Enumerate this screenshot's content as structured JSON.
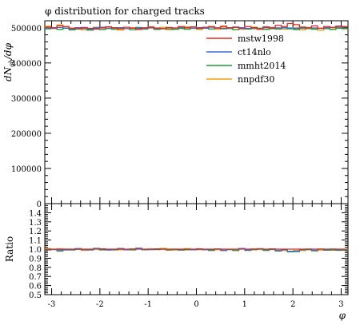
{
  "chart_data": {
    "type": "line",
    "title": "φ distribution for charged tracks",
    "xlabel": "φ",
    "ylabel": "dN_ch/dφ",
    "ratio_ylabel": "Ratio",
    "xlim": [
      -3.1416,
      3.1416
    ],
    "ylim": [
      0,
      520000
    ],
    "ratio_ylim": [
      0.5,
      1.5
    ],
    "x_ticks": [
      -3,
      -2,
      -1,
      0,
      1,
      2,
      3
    ],
    "y_ticks": [
      0,
      100000,
      200000,
      300000,
      400000,
      500000
    ],
    "ratio_ticks": [
      0.5,
      0.6,
      0.7,
      0.8,
      0.9,
      1.0,
      1.1,
      1.2,
      1.3,
      1.4
    ],
    "legend_position": "top-right",
    "n_bins": 50,
    "series": [
      {
        "name": "mstw1998",
        "color": "#e8261f",
        "values": [
          502000,
          500500,
          506000,
          503500,
          499000,
          497500,
          501000,
          498500,
          496500,
          499500,
          503000,
          500500,
          497000,
          501500,
          499000,
          495500,
          500000,
          502000,
          498000,
          497500,
          501000,
          499500,
          503500,
          500000,
          502500,
          498500,
          501500,
          503500,
          499000,
          504500,
          500500,
          502000,
          497000,
          503500,
          500500,
          496500,
          502500,
          499500,
          507000,
          503500,
          512000,
          509000,
          502000,
          500500,
          505500,
          498500,
          503500,
          501000,
          505000,
          503500
        ]
      },
      {
        "name": "ct14nlo",
        "color": "#3a6cd9",
        "values": [
          500000,
          498500,
          501000,
          499500,
          497000,
          500500,
          498000,
          496500,
          500000,
          501500,
          498500,
          499500,
          500500,
          497500,
          499000,
          501000,
          498500,
          500000,
          499500,
          497000,
          500500,
          499000,
          501000,
          500000,
          498500,
          500500,
          499000,
          501500,
          500000,
          498000,
          499500,
          501000,
          500500,
          498500,
          500000,
          497500,
          500500,
          501000,
          499000,
          500500,
          499500,
          498000,
          500000,
          501000,
          499500,
          498500,
          500500,
          501500,
          502000,
          503000
        ]
      },
      {
        "name": "mmht2014",
        "color": "#1e9b32",
        "values": [
          497000,
          500000,
          495500,
          498500,
          494000,
          496500,
          499500,
          493500,
          497500,
          495000,
          498000,
          496000,
          499000,
          497500,
          494500,
          498000,
          496500,
          499500,
          495500,
          498500,
          497000,
          495500,
          498500,
          496000,
          499000,
          497500,
          498500,
          496500,
          499500,
          497000,
          498000,
          495000,
          498500,
          496500,
          497500,
          499000,
          495500,
          498000,
          496500,
          499500,
          497000,
          495000,
          498500,
          497500,
          496000,
          499000,
          497500,
          495500,
          498500,
          497500
        ]
      },
      {
        "name": "nnpdf30",
        "color": "#f5a10c",
        "values": [
          505000,
          498000,
          508000,
          503500,
          496500,
          499000,
          494000,
          497000,
          501500,
          495500,
          500000,
          498000,
          493500,
          497500,
          500500,
          496500,
          499000,
          503000,
          497000,
          501500,
          494500,
          499500,
          497500,
          502500,
          498500,
          495500,
          500500,
          497000,
          496000,
          501500,
          498500,
          494500,
          500000,
          497500,
          502000,
          495500,
          499500,
          497000,
          500500,
          496000,
          498500,
          501000,
          494000,
          499000,
          497500,
          493000,
          499500,
          496500,
          500500,
          497000
        ]
      }
    ]
  }
}
